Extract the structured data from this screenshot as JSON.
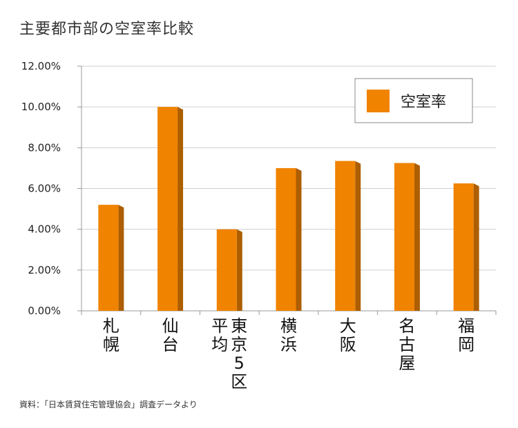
{
  "title": "主要都市部の空室率比較",
  "source": "資料：「日本賃貸住宅管理協会」調査データより",
  "chart_data": {
    "type": "bar",
    "title": "主要都市部の空室率比較",
    "categories": [
      "札幌",
      "仙台",
      "平均東京5区",
      "横浜",
      "大阪",
      "名古屋",
      "福岡"
    ],
    "category_lines": [
      [
        "札",
        "幌"
      ],
      [
        "仙",
        "台"
      ],
      [
        "平",
        "均"
      ],
      [
        "横",
        "浜"
      ],
      [
        "大",
        "阪"
      ],
      [
        "名",
        "古",
        "屋"
      ],
      [
        "福",
        "岡"
      ]
    ],
    "category_lines_extra": {
      "2": [
        "東",
        "京",
        "5",
        "区"
      ]
    },
    "series": [
      {
        "name": "空室率",
        "values": [
          5.2,
          10.0,
          4.0,
          7.0,
          7.35,
          7.25,
          6.25
        ],
        "color": "#f08300"
      }
    ],
    "ylim": [
      0,
      12
    ],
    "yticks": [
      "0.00%",
      "2.00%",
      "4.00%",
      "6.00%",
      "8.00%",
      "10.00%",
      "12.00%"
    ],
    "ytick_values": [
      0,
      2,
      4,
      6,
      8,
      10,
      12
    ],
    "grid": true,
    "legend_position": "top-right",
    "xlabel": "",
    "ylabel": ""
  }
}
